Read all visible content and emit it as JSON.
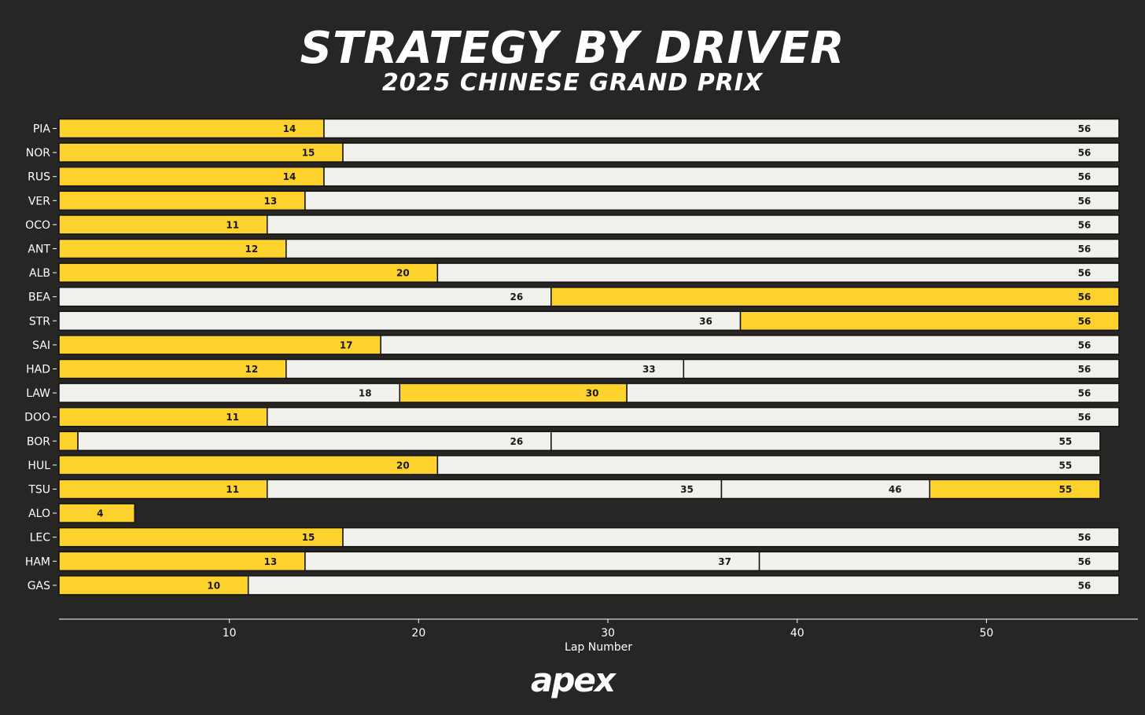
{
  "header": {
    "title": "STRATEGY BY DRIVER",
    "subtitle": "2025 CHINESE GRAND PRIX"
  },
  "footer": {
    "logo_text": "apex"
  },
  "colors": {
    "background": "#282625",
    "hard": "#f0f0ec",
    "medium": "#fdd22c",
    "bar_border": "#111111",
    "text_light": "#ffffff",
    "label_dark": "#1a1a1a"
  },
  "chart_data": {
    "type": "bar",
    "orientation": "horizontal",
    "stacked": true,
    "xlabel": "Lap Number",
    "xlim": [
      1,
      58
    ],
    "xticks": [
      10,
      20,
      30,
      40,
      50
    ],
    "grid": false,
    "legend": "none",
    "drivers": [
      {
        "name": "PIA",
        "stints": [
          {
            "compound": "medium",
            "end": 14
          },
          {
            "compound": "hard",
            "end": 56
          }
        ]
      },
      {
        "name": "NOR",
        "stints": [
          {
            "compound": "medium",
            "end": 15
          },
          {
            "compound": "hard",
            "end": 56
          }
        ]
      },
      {
        "name": "RUS",
        "stints": [
          {
            "compound": "medium",
            "end": 14
          },
          {
            "compound": "hard",
            "end": 56
          }
        ]
      },
      {
        "name": "VER",
        "stints": [
          {
            "compound": "medium",
            "end": 13
          },
          {
            "compound": "hard",
            "end": 56
          }
        ]
      },
      {
        "name": "OCO",
        "stints": [
          {
            "compound": "medium",
            "end": 11
          },
          {
            "compound": "hard",
            "end": 56
          }
        ]
      },
      {
        "name": "ANT",
        "stints": [
          {
            "compound": "medium",
            "end": 12
          },
          {
            "compound": "hard",
            "end": 56
          }
        ]
      },
      {
        "name": "ALB",
        "stints": [
          {
            "compound": "medium",
            "end": 20
          },
          {
            "compound": "hard",
            "end": 56
          }
        ]
      },
      {
        "name": "BEA",
        "stints": [
          {
            "compound": "hard",
            "end": 26
          },
          {
            "compound": "medium",
            "end": 56
          }
        ]
      },
      {
        "name": "STR",
        "stints": [
          {
            "compound": "hard",
            "end": 36
          },
          {
            "compound": "medium",
            "end": 56
          }
        ]
      },
      {
        "name": "SAI",
        "stints": [
          {
            "compound": "medium",
            "end": 17
          },
          {
            "compound": "hard",
            "end": 56
          }
        ]
      },
      {
        "name": "HAD",
        "stints": [
          {
            "compound": "medium",
            "end": 12
          },
          {
            "compound": "hard",
            "end": 33
          },
          {
            "compound": "hard",
            "end": 56
          }
        ]
      },
      {
        "name": "LAW",
        "stints": [
          {
            "compound": "hard",
            "end": 18
          },
          {
            "compound": "medium",
            "end": 30
          },
          {
            "compound": "hard",
            "end": 56
          }
        ]
      },
      {
        "name": "DOO",
        "stints": [
          {
            "compound": "medium",
            "end": 11
          },
          {
            "compound": "hard",
            "end": 56
          }
        ]
      },
      {
        "name": "BOR",
        "stints": [
          {
            "compound": "medium",
            "end": 1,
            "label": ""
          },
          {
            "compound": "hard",
            "end": 26
          },
          {
            "compound": "hard",
            "end": 55
          }
        ]
      },
      {
        "name": "HUL",
        "stints": [
          {
            "compound": "medium",
            "end": 20
          },
          {
            "compound": "hard",
            "end": 55
          }
        ]
      },
      {
        "name": "TSU",
        "stints": [
          {
            "compound": "medium",
            "end": 11
          },
          {
            "compound": "hard",
            "end": 35
          },
          {
            "compound": "hard",
            "end": 46
          },
          {
            "compound": "medium",
            "end": 55
          }
        ]
      },
      {
        "name": "ALO",
        "stints": [
          {
            "compound": "medium",
            "end": 4
          }
        ]
      },
      {
        "name": "LEC",
        "stints": [
          {
            "compound": "medium",
            "end": 15
          },
          {
            "compound": "hard",
            "end": 56
          }
        ]
      },
      {
        "name": "HAM",
        "stints": [
          {
            "compound": "medium",
            "end": 13
          },
          {
            "compound": "hard",
            "end": 37
          },
          {
            "compound": "hard",
            "end": 56
          }
        ]
      },
      {
        "name": "GAS",
        "stints": [
          {
            "compound": "medium",
            "end": 10
          },
          {
            "compound": "hard",
            "end": 56
          }
        ]
      }
    ]
  }
}
